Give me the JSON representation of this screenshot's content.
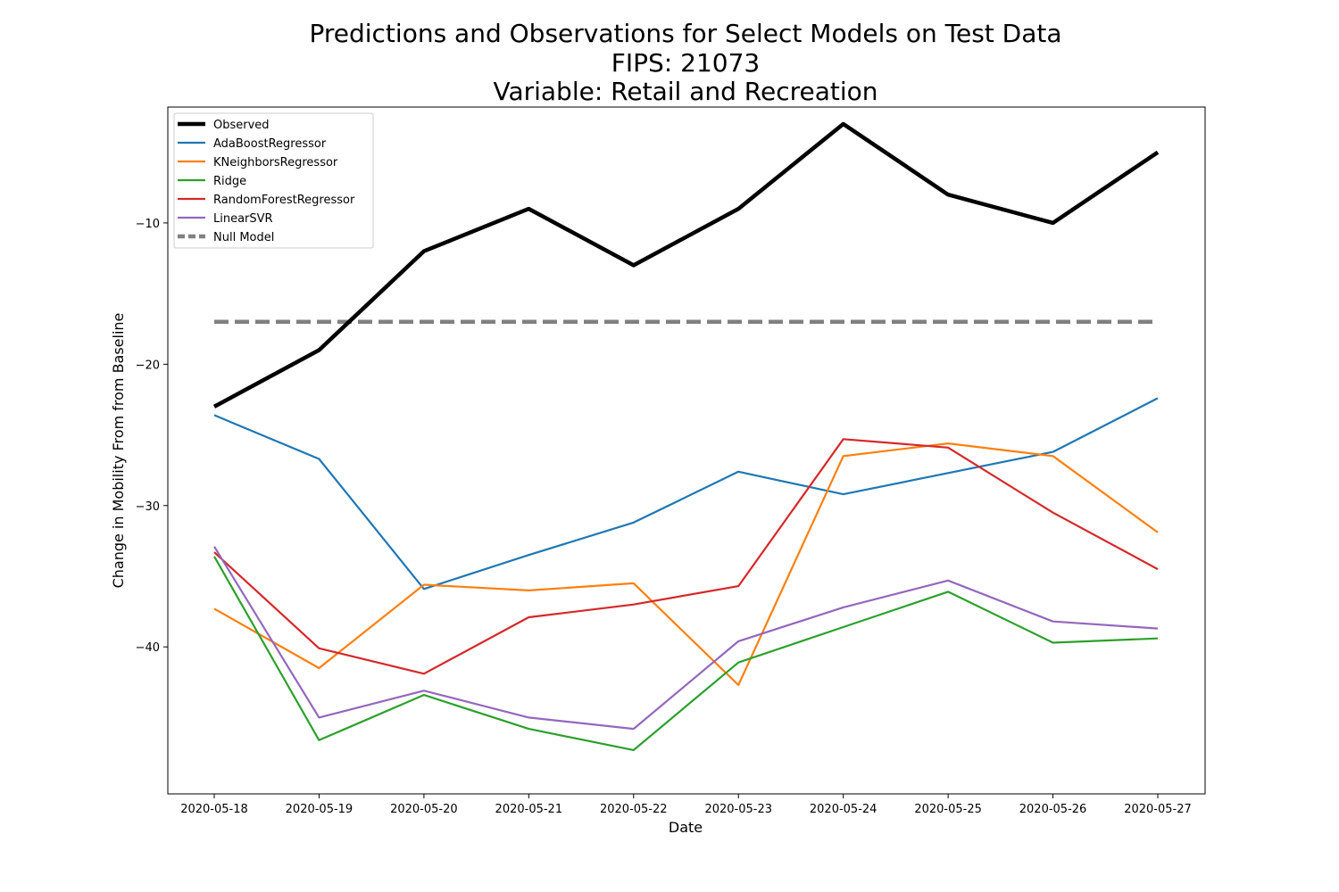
{
  "chart_data": {
    "type": "line",
    "title_lines": [
      "Predictions and Observations for Select Models on Test Data",
      "FIPS: 21073",
      "Variable: Retail and Recreation"
    ],
    "xlabel": "Date",
    "ylabel": "Change in Mobility From from Baseline",
    "x": [
      "2020-05-18",
      "2020-05-19",
      "2020-05-20",
      "2020-05-21",
      "2020-05-22",
      "2020-05-23",
      "2020-05-24",
      "2020-05-25",
      "2020-05-26",
      "2020-05-27"
    ],
    "ylim": [
      -50.4,
      -1.8
    ],
    "yticks": [
      -40,
      -30,
      -20,
      -10
    ],
    "ytick_labels": [
      "−40",
      "−30",
      "−20",
      "−10"
    ],
    "grid": false,
    "legend_position": "top-left",
    "series": [
      {
        "name": "Observed",
        "color": "#000000",
        "style": "solid",
        "width": "thick",
        "values": [
          -23,
          -19,
          -12,
          -9,
          -13,
          -9,
          -3,
          -8,
          -10,
          -5
        ]
      },
      {
        "name": "AdaBoostRegressor",
        "color": "#1f77b4",
        "style": "solid",
        "width": "normal",
        "values": [
          -23.6,
          -26.7,
          -35.9,
          -33.5,
          -31.2,
          -27.6,
          -29.2,
          -27.7,
          -26.2,
          -22.4
        ]
      },
      {
        "name": "KNeighborsRegressor",
        "color": "#ff7f0e",
        "style": "solid",
        "width": "normal",
        "values": [
          -37.3,
          -41.5,
          -35.6,
          -36.0,
          -35.5,
          -42.7,
          -26.5,
          -25.6,
          -26.5,
          -31.9
        ]
      },
      {
        "name": "Ridge",
        "color": "#2ca02c",
        "style": "solid",
        "width": "normal",
        "values": [
          -33.6,
          -46.6,
          -43.4,
          -45.8,
          -47.3,
          -41.1,
          -38.6,
          -36.1,
          -39.7,
          -39.4
        ]
      },
      {
        "name": "RandomForestRegressor",
        "color": "#d62728",
        "style": "solid",
        "width": "normal",
        "values": [
          -33.3,
          -40.1,
          -41.9,
          -37.9,
          -37.0,
          -35.7,
          -25.3,
          -25.9,
          -30.5,
          -34.5
        ]
      },
      {
        "name": "LinearSVR",
        "color": "#9467bd",
        "style": "solid",
        "width": "normal",
        "values": [
          -32.9,
          -45.0,
          -43.1,
          -45.0,
          -45.8,
          -39.6,
          -37.2,
          -35.3,
          -38.2,
          -38.7
        ]
      },
      {
        "name": "Null Model",
        "color": "#808080",
        "style": "dashed",
        "width": "thick",
        "values": [
          -17,
          -17,
          -17,
          -17,
          -17,
          -17,
          -17,
          -17,
          -17,
          -17
        ]
      }
    ]
  }
}
